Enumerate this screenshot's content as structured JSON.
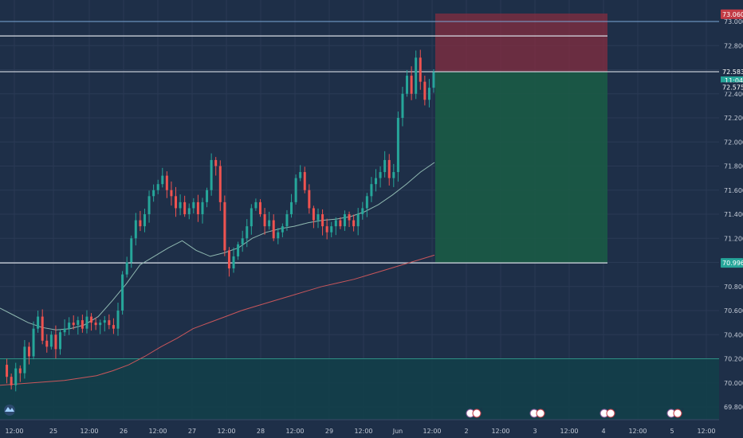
{
  "chart_data": {
    "type": "candlestick",
    "title": "",
    "xlabel": "",
    "ylabel": "",
    "ylim": [
      69.75,
      73.1
    ],
    "grid": true,
    "x_ticks": [
      "12:00",
      "25",
      "12:00",
      "26",
      "12:00",
      "27",
      "12:00",
      "28",
      "12:00",
      "29",
      "12:00",
      "Jun",
      "12:00",
      "2",
      "12:00",
      "3",
      "12:00",
      "4",
      "12:00",
      "5",
      "12:00"
    ],
    "y_ticks": [
      69.8,
      70.0,
      70.2,
      70.4,
      70.6,
      70.8,
      71.0,
      71.2,
      71.4,
      71.6,
      71.8,
      72.0,
      72.2,
      72.4,
      72.6,
      72.8,
      73.0
    ],
    "y_tick_labels": [
      "69.800",
      "70.000",
      "70.200",
      "70.400",
      "70.600",
      "70.800",
      "71.000",
      "71.200",
      "71.400",
      "71.600",
      "71.800",
      "72.000",
      "72.200",
      "72.400",
      "72.600",
      "72.800",
      "73.000"
    ],
    "price_path": [
      70.15,
      70.05,
      69.98,
      70.12,
      70.08,
      70.3,
      70.22,
      70.45,
      70.55,
      70.35,
      70.3,
      70.4,
      70.28,
      70.42,
      70.45,
      70.5,
      70.48,
      70.52,
      70.45,
      70.55,
      70.5,
      70.48,
      70.5,
      70.52,
      70.48,
      70.45,
      70.6,
      70.9,
      71.0,
      71.2,
      71.35,
      71.3,
      71.4,
      71.55,
      71.6,
      71.65,
      71.72,
      71.6,
      71.55,
      71.45,
      71.5,
      71.4,
      71.45,
      71.5,
      71.4,
      71.5,
      71.6,
      71.85,
      71.8,
      71.5,
      71.1,
      70.95,
      71.05,
      71.15,
      71.2,
      71.3,
      71.45,
      71.5,
      71.4,
      71.3,
      71.35,
      71.2,
      71.25,
      71.3,
      71.4,
      71.5,
      71.7,
      71.75,
      71.6,
      71.45,
      71.35,
      71.4,
      71.3,
      71.25,
      71.3,
      71.35,
      71.3,
      71.4,
      71.35,
      71.3,
      71.4,
      71.45,
      71.55,
      71.65,
      71.7,
      71.75,
      71.85,
      71.7,
      71.75,
      72.2,
      72.4,
      72.55,
      72.4,
      72.7,
      72.5,
      72.35,
      72.45,
      72.58
    ],
    "series": [
      {
        "type": "ma",
        "color": "#8fb8b0",
        "values": [
          70.62,
          70.56,
          70.5,
          70.46,
          70.44,
          70.45,
          70.48,
          70.55,
          70.68,
          70.82,
          70.98,
          71.05,
          71.12,
          71.18,
          71.1,
          71.05,
          71.08,
          71.12,
          71.2,
          71.25,
          71.28,
          71.3,
          71.33,
          71.35,
          71.36,
          71.38,
          71.42,
          71.48,
          71.56,
          71.65,
          71.75,
          71.83
        ]
      },
      {
        "type": "ma",
        "color": "#c9565b",
        "values": [
          69.98,
          69.99,
          70.0,
          70.01,
          70.02,
          70.04,
          70.06,
          70.1,
          70.15,
          70.22,
          70.3,
          70.37,
          70.45,
          70.5,
          70.55,
          70.6,
          70.64,
          70.68,
          70.72,
          70.76,
          70.8,
          70.83,
          70.86,
          70.9,
          70.94,
          70.98,
          71.02,
          71.06
        ]
      }
    ],
    "horizontal_lines": [
      73.0,
      72.88,
      72.583,
      70.996
    ],
    "position": {
      "entry": 72.583,
      "stop": 73.06,
      "target": 70.996
    },
    "zone_bottom": 70.2,
    "markers": {
      "stop_label": "73.060",
      "entry_label": "72.583",
      "countdown": "11:04",
      "last_price": "72.575",
      "target_label": "70.996"
    },
    "event_icon_counts": [
      "5",
      "5",
      "4",
      "2"
    ],
    "colors": {
      "background": "#1e2f48",
      "grid": "#2a3a55",
      "up": "#26a69a",
      "down": "#ef5350",
      "stop_zone": "#8a2c3e",
      "target_zone": "#1a5d45",
      "demand_zone": "#12404a",
      "line": "#d8dde6"
    }
  }
}
